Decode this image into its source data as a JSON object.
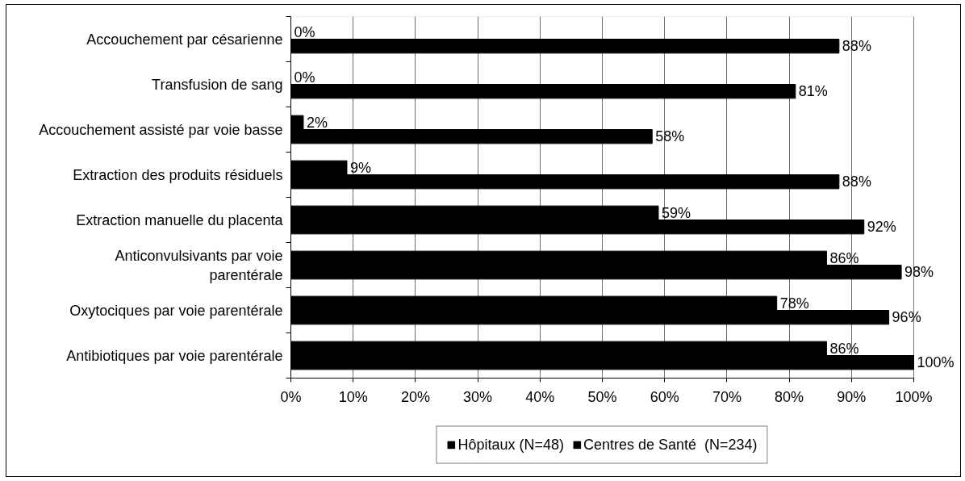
{
  "chart_data": {
    "type": "bar",
    "orientation": "horizontal",
    "categories": [
      "Accouchement par césarienne",
      "Transfusion de sang",
      "Accouchement assisté par voie basse",
      "Extraction des produits résiduels",
      "Extraction manuelle du placenta",
      "Anticonvulsivants par voie parentérale",
      "Oxytociques par voie parentérale",
      "Antibiotiques par voie parentérale"
    ],
    "series": [
      {
        "name": "Hôpitaux (N=48)",
        "color": "#000000",
        "values": [
          88,
          81,
          58,
          88,
          92,
          98,
          96,
          100
        ],
        "value_labels": [
          "88%",
          "81%",
          "58%",
          "88%",
          "92%",
          "98%",
          "96%",
          "100%"
        ]
      },
      {
        "name": "Centres de Santé  (N=234)",
        "color": "#000000",
        "values": [
          0,
          0,
          2,
          9,
          59,
          86,
          78,
          86
        ],
        "value_labels": [
          "0%",
          "0%",
          "2%",
          "9%",
          "59%",
          "86%",
          "78%",
          "86%"
        ]
      }
    ],
    "xlim": [
      0,
      100
    ],
    "xticks": [
      {
        "value": 0,
        "label": "0%"
      },
      {
        "value": 10,
        "label": "10%"
      },
      {
        "value": 20,
        "label": "20%"
      },
      {
        "value": 30,
        "label": "30%"
      },
      {
        "value": 40,
        "label": "40%"
      },
      {
        "value": 50,
        "label": "50%"
      },
      {
        "value": 60,
        "label": "60%"
      },
      {
        "value": 70,
        "label": "70%"
      },
      {
        "value": 80,
        "label": "80%"
      },
      {
        "value": 90,
        "label": "90%"
      },
      {
        "value": 100,
        "label": "100%"
      }
    ],
    "grid": "x",
    "legend": "bottom"
  }
}
